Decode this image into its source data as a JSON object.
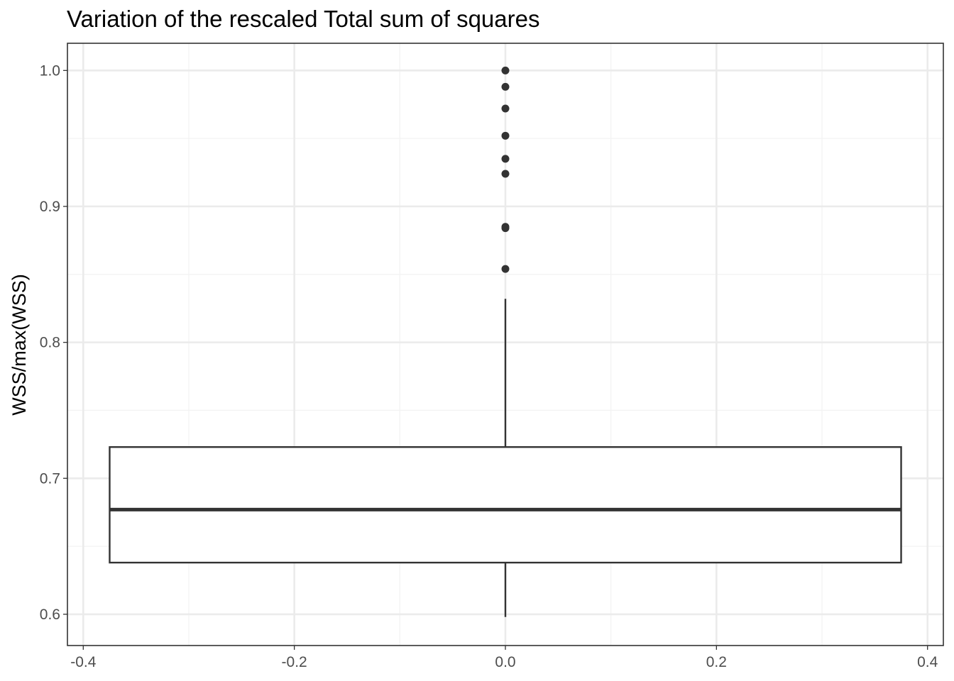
{
  "chart_data": {
    "type": "boxplot",
    "title": "Variation of the rescaled Total sum of squares",
    "xlabel": "",
    "ylabel": "WSS/max(WSS)",
    "xlim": [
      -0.415,
      0.415
    ],
    "ylim": [
      0.577,
      1.02
    ],
    "x_ticks": [
      -0.4,
      -0.2,
      0.0,
      0.2,
      0.4
    ],
    "x_tick_labels": [
      "-0.4",
      "-0.2",
      "0.0",
      "0.2",
      "0.4"
    ],
    "y_ticks": [
      0.6,
      0.7,
      0.8,
      0.9,
      1.0
    ],
    "y_tick_labels": [
      "0.6",
      "0.7",
      "0.8",
      "0.9",
      "1.0"
    ],
    "grid": true,
    "colors": {
      "box": "#333333",
      "grid_major": "#ebebeb",
      "grid_minor": "#f3f3f3",
      "panel_border": "#333333"
    },
    "box": {
      "x": 0.0,
      "x_left": -0.375,
      "x_right": 0.375,
      "whisker_low": 0.598,
      "q1": 0.638,
      "median": 0.677,
      "q3": 0.723,
      "whisker_high": 0.832
    },
    "outliers": [
      0.854,
      0.884,
      0.885,
      0.924,
      0.935,
      0.952,
      0.972,
      0.988,
      1.0
    ]
  }
}
